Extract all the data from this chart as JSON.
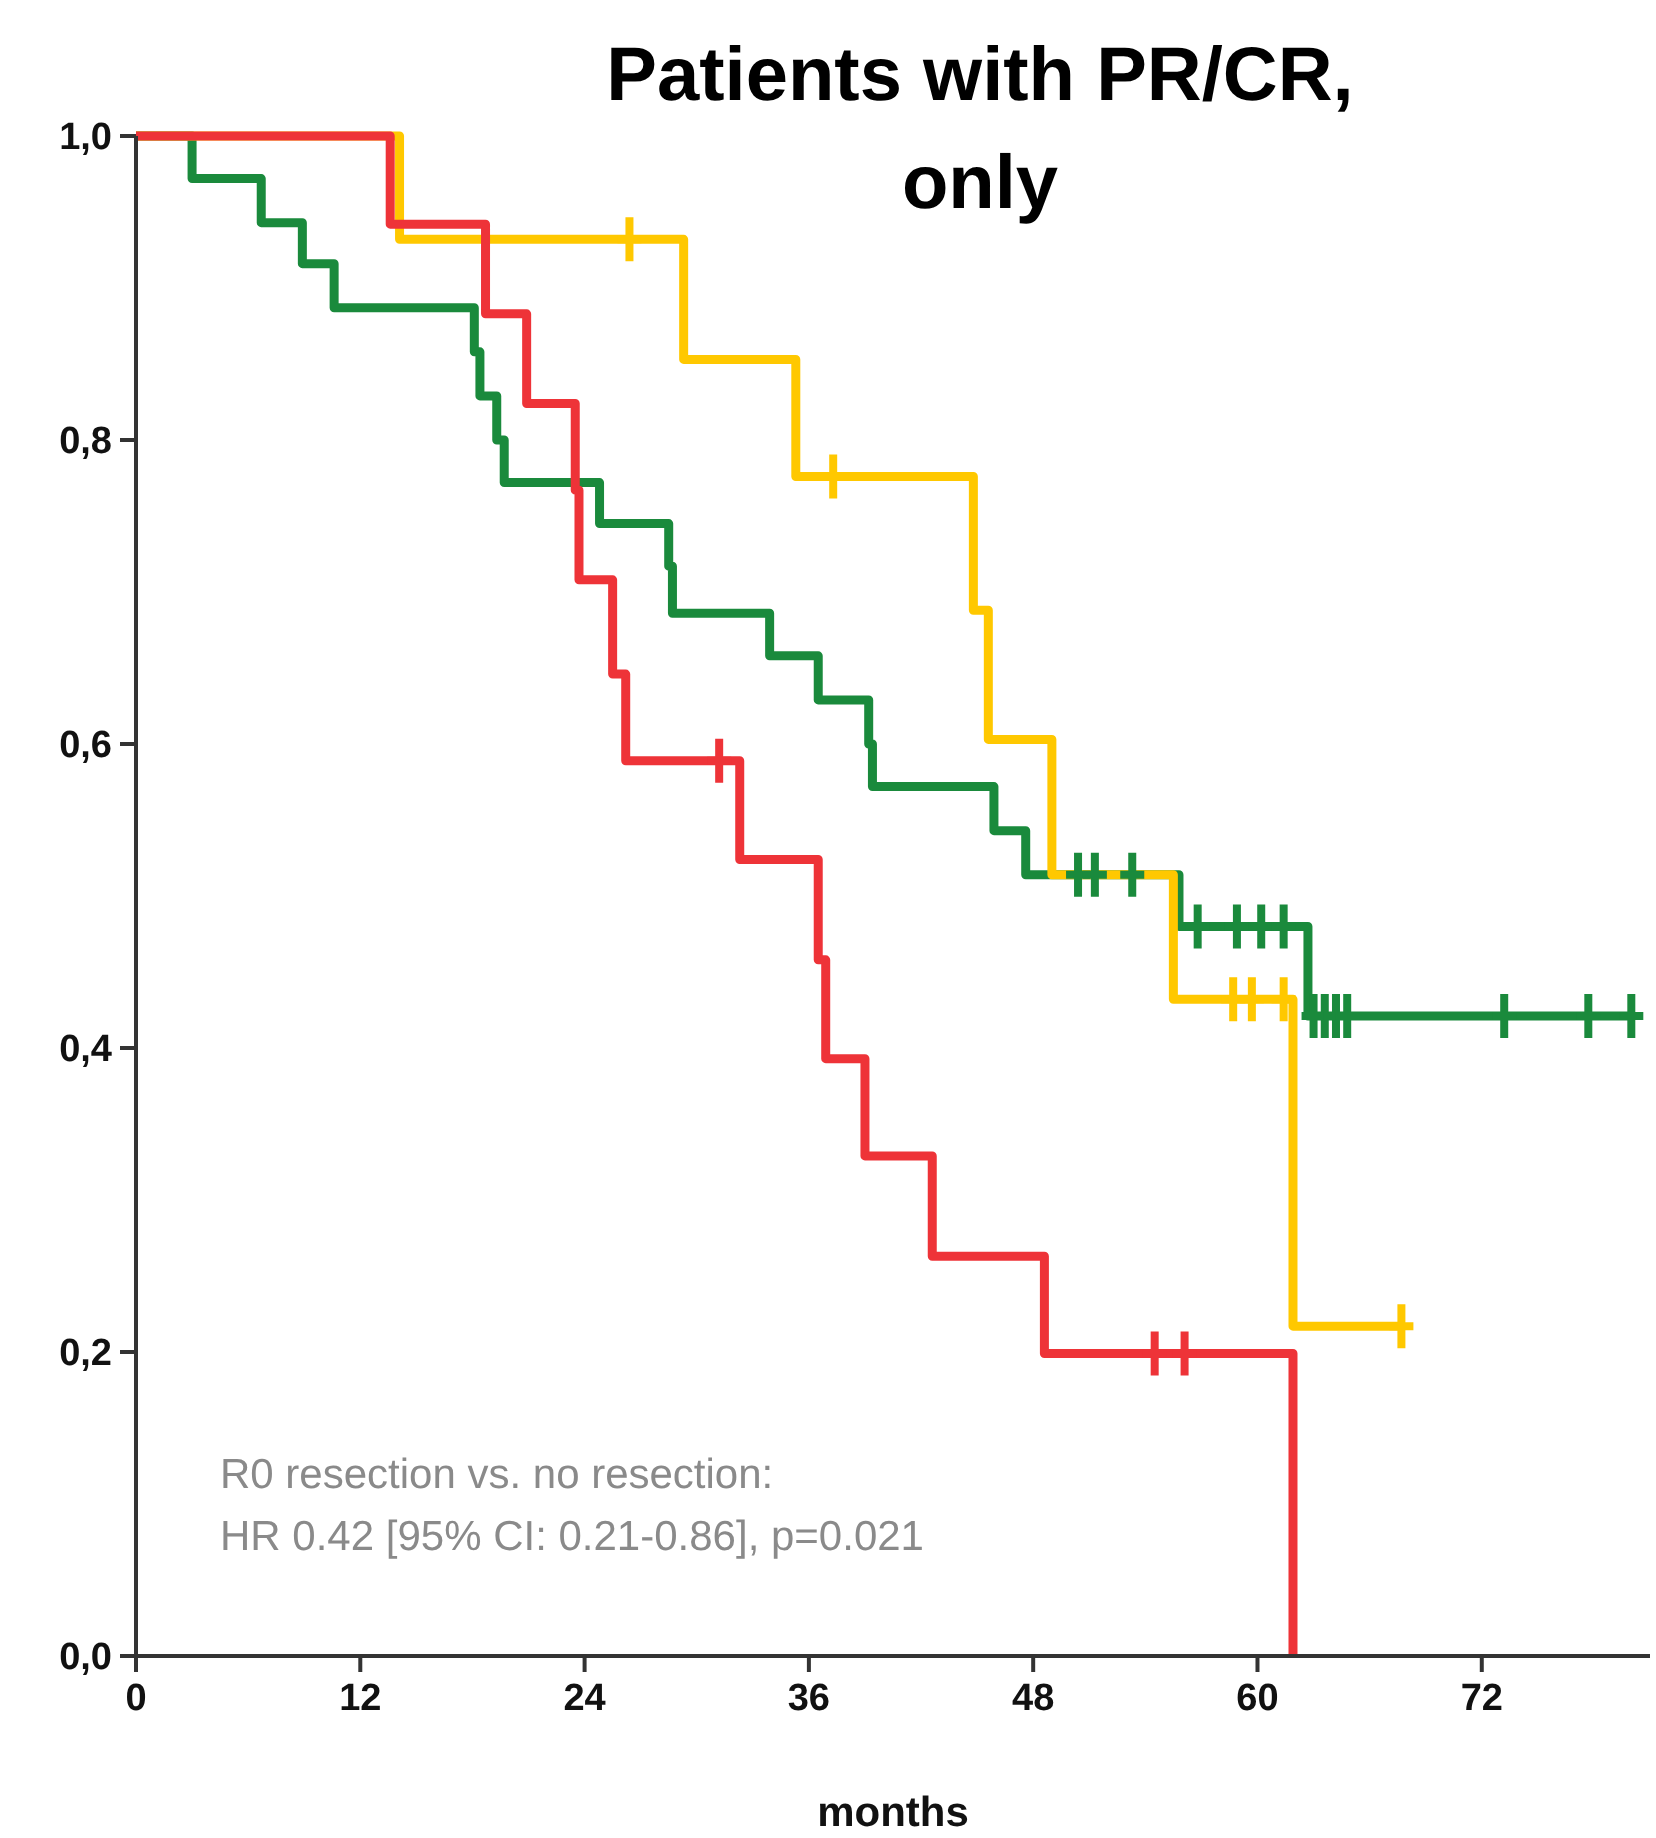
{
  "chart_data": {
    "type": "step",
    "title": "Patients with PR/CR, only",
    "xlabel": "months",
    "xlim": [
      0,
      81
    ],
    "xticks": [
      0,
      12,
      24,
      36,
      48,
      60,
      72
    ],
    "ylim": [
      0,
      1
    ],
    "yticks": [
      {
        "value": 0,
        "label": "0,0"
      },
      {
        "value": 0.2,
        "label": "0,2"
      },
      {
        "value": 0.4,
        "label": "0,4"
      },
      {
        "value": 0.6,
        "label": "0,6"
      },
      {
        "value": 0.8,
        "label": "0,8"
      },
      {
        "value": 1,
        "label": "1,0"
      }
    ],
    "grid": false,
    "line_style": "solid",
    "annotations": [
      "R0 resection vs. no resection:",
      "HR 0.42 [95% CI: 0.21-0.86], p=0.021"
    ],
    "series": [
      {
        "marker": "none",
        "color": "#1a8a3c",
        "x": [
          0,
          3.0,
          6.7,
          8.9,
          10.6,
          18.1,
          18.4,
          19.3,
          19.7,
          24.8,
          28.5,
          28.7,
          33.9,
          36.5,
          39.2,
          39.4,
          45.9,
          47.6,
          55.8,
          62.7,
          80.0
        ],
        "values": [
          1,
          0.972,
          0.943,
          0.916,
          0.887,
          0.858,
          0.829,
          0.8,
          0.772,
          0.745,
          0.717,
          0.686,
          0.658,
          0.629,
          0.6,
          0.572,
          0.543,
          0.514,
          0.48,
          0.421,
          0.421
        ]
      },
      {
        "marker": "none",
        "color": "#ffc800",
        "x": [
          0,
          14.1,
          29.3,
          35.3,
          44.8,
          45.6,
          49.0,
          55.5,
          61.9,
          67.7
        ],
        "values": [
          1,
          0.932,
          0.853,
          0.776,
          0.688,
          0.603,
          0.514,
          0.432,
          0.217,
          0.217
        ]
      },
      {
        "marker": "none",
        "color": "#ee3338",
        "x": [
          0,
          13.6,
          18.7,
          20.9,
          23.5,
          23.7,
          25.5,
          26.2,
          32.3,
          36.5,
          36.9,
          39.0,
          42.6,
          48.6,
          61.9
        ],
        "values": [
          1,
          0.942,
          0.883,
          0.824,
          0.767,
          0.708,
          0.646,
          0.589,
          0.524,
          0.458,
          0.393,
          0.329,
          0.263,
          0.199,
          0
        ]
      },
      {
        "type": "scatter",
        "marker": "cross",
        "color": "#1a8a3c",
        "x": [
          50.4,
          51.3,
          53.3,
          56.8,
          58.9,
          60.2,
          61.4,
          63.0,
          63.6,
          64.2,
          64.8,
          73.2,
          77.7,
          80.0
        ],
        "values": [
          0.514,
          0.514,
          0.514,
          0.48,
          0.48,
          0.48,
          0.48,
          0.421,
          0.421,
          0.421,
          0.421,
          0.421,
          0.421,
          0.421
        ]
      },
      {
        "type": "scatter",
        "marker": "cross",
        "color": "#ffc800",
        "x": [
          26.4,
          37.3,
          58.7,
          59.7,
          61.4,
          67.7
        ],
        "values": [
          0.932,
          0.776,
          0.432,
          0.432,
          0.432,
          0.217
        ]
      },
      {
        "type": "scatter",
        "marker": "cross",
        "color": "#ee3338",
        "x": [
          31.2,
          54.5,
          56.1
        ],
        "values": [
          0.589,
          0.199,
          0.199
        ]
      }
    ]
  }
}
